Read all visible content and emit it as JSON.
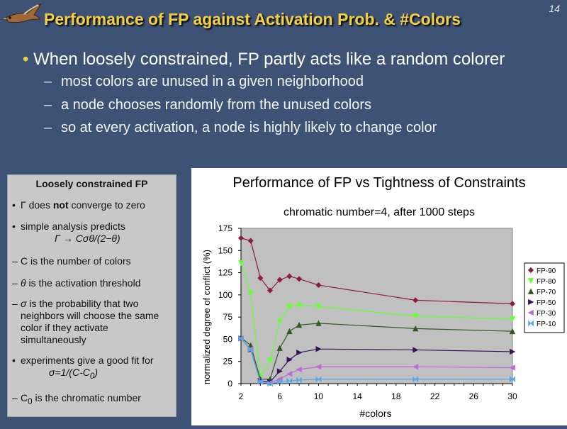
{
  "slide": {
    "title": "Performance of FP against Activation Prob. & #Colors",
    "page_number": "14",
    "logo_icon": "kestrel-bird-logo"
  },
  "bullets": {
    "main": "When loosely constrained, FP partly acts like a random colorer",
    "subs": [
      "most colors are unused in a given neighborhood",
      "a node chooses randomly from the unused colors",
      "so at every activation, a node is highly likely to change color"
    ]
  },
  "sidebox": {
    "title": "Loosely constrained FP",
    "item1_pre": "Γ does ",
    "item1_bold": "not",
    "item1_post": " converge to zero",
    "item2_line1": "simple analysis predicts",
    "item2_formula": "Γ → Cσθ/(2−θ)",
    "item3": "C is the number of colors",
    "item4_sym": "θ",
    "item4_rest": " is the activation threshold",
    "item5_sym": "σ",
    "item5_rest": " is the probability that two neighbors will choose the same color if they activate simultaneously",
    "item6_line1": "experiments give a good fit for",
    "item6_formula_pre": "σ=1/(C-C",
    "item6_formula_sub": "0",
    "item6_formula_post": ")",
    "item7_pre": "C",
    "item7_sub": "0",
    "item7_post": " is the chromatic number"
  },
  "colors": {
    "title": "#f5d142",
    "background": "#3d5275",
    "plot_bg": "#c0c0c0"
  },
  "chart_data": {
    "type": "line",
    "title": "Performance of FP vs Tightness of Constraints",
    "subtitle": "chromatic number=4, after 1000 steps",
    "xlabel": "#colors",
    "ylabel": "normalized degree of conflict (%)",
    "xlim": [
      2,
      30
    ],
    "ylim": [
      0,
      175
    ],
    "xticks": [
      2,
      6,
      10,
      14,
      18,
      22,
      26,
      30
    ],
    "yticks": [
      0,
      25,
      50,
      75,
      100,
      125,
      150,
      175
    ],
    "grid": false,
    "legend_position": "right",
    "series": [
      {
        "name": "FP-90",
        "color": "#8b1a4a",
        "marker": "diamond",
        "x": [
          2,
          3,
          4,
          5,
          6,
          7,
          8,
          10,
          20,
          30
        ],
        "y": [
          164,
          161,
          119,
          105,
          117,
          121,
          118,
          111,
          94,
          90
        ]
      },
      {
        "name": "FP-80",
        "color": "#66ff33",
        "marker": "triangle-down",
        "x": [
          2,
          3,
          4,
          5,
          6,
          7,
          8,
          10,
          20,
          30
        ],
        "y": [
          136,
          102,
          8,
          26,
          70,
          87,
          88,
          87,
          76,
          73
        ]
      },
      {
        "name": "FP-70",
        "color": "#2d5a1b",
        "marker": "triangle-up",
        "x": [
          2,
          3,
          4,
          5,
          6,
          7,
          8,
          10,
          20,
          30
        ],
        "y": [
          52,
          43,
          5,
          5,
          40,
          59,
          66,
          68,
          62,
          59
        ]
      },
      {
        "name": "FP-50",
        "color": "#3a1060",
        "marker": "triangle-right",
        "x": [
          2,
          3,
          4,
          5,
          6,
          7,
          8,
          10,
          20,
          30
        ],
        "y": [
          51,
          38,
          3,
          2,
          14,
          27,
          35,
          39,
          38,
          36
        ]
      },
      {
        "name": "FP-30",
        "color": "#c06ad8",
        "marker": "triangle-left",
        "x": [
          2,
          3,
          4,
          5,
          6,
          7,
          8,
          10,
          20,
          30
        ],
        "y": [
          51,
          39,
          2,
          1,
          5,
          11,
          16,
          19,
          19,
          18
        ]
      },
      {
        "name": "FP-10",
        "color": "#5aa8e8",
        "marker": "bowtie",
        "x": [
          2,
          3,
          4,
          5,
          6,
          7,
          8,
          10,
          20,
          30
        ],
        "y": [
          51,
          38,
          2,
          0,
          2,
          3,
          4,
          5,
          5,
          5
        ]
      }
    ]
  }
}
